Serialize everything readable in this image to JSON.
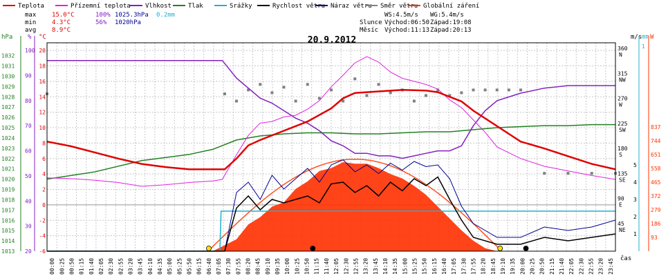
{
  "chart_data": {
    "type": "line",
    "title": "20.9.2012",
    "xlabel": "čas",
    "legend": [
      {
        "name": "Teplota",
        "color": "#e00000"
      },
      {
        "name": "Přízemní teplota",
        "color": "#e020e0"
      },
      {
        "name": "Vlhkost",
        "color": "#8020c0"
      },
      {
        "name": "Tlak",
        "color": "#208020"
      },
      {
        "name": "Srážky",
        "color": "#20b0d0"
      },
      {
        "name": "Rychlost větru",
        "color": "#000000"
      },
      {
        "name": "Náraz větru",
        "color": "#000090"
      },
      {
        "name": "Směr větru",
        "color": "#808080"
      },
      {
        "name": "Globální záření",
        "color": "#ff3000"
      }
    ],
    "stats": {
      "max_label": "max",
      "max_temp": "15.0°C",
      "max_hum": "100%",
      "max_press": "1025.3hPa",
      "max_rain": "0.2mm",
      "min_label": "min",
      "min_temp": "4.3°C",
      "min_hum": "56%",
      "min_press": "1020hPa",
      "avg_label": "avg",
      "avg_temp": "8.9°C",
      "ws": "WS:4.5m/s",
      "wg": "WG:5.4m/s",
      "sun_label": "Slunce",
      "sun_rise": "Východ:06:50",
      "sun_set": "Západ:19:08",
      "moon_label": "Měsíc",
      "moon_rise": "Východ:11:13",
      "moon_set": "Západ:20:13"
    },
    "axes": {
      "left": [
        {
          "unit": "hPa",
          "color": "#208020",
          "ticks": [
            1013,
            1014,
            1015,
            1016,
            1017,
            1018,
            1019,
            1020,
            1021,
            1022,
            1023,
            1024,
            1025,
            1026,
            1027,
            1028,
            1029,
            1030,
            1031,
            1032
          ]
        },
        {
          "unit": "%",
          "color": "#8020c0",
          "ticks": [
            20,
            30,
            40,
            50,
            60,
            70,
            80,
            90,
            100
          ]
        },
        {
          "unit": "°C",
          "color": "#e00000",
          "ticks": [
            -6,
            -4,
            -2,
            0,
            2,
            4,
            6,
            8,
            10,
            12,
            14,
            16,
            18,
            20
          ]
        }
      ],
      "right": [
        {
          "unit": "m/s",
          "color": "#000000",
          "ticks": [
            1,
            2,
            3,
            4,
            5
          ]
        },
        {
          "unit": "mm",
          "color": "#20b0d0",
          "ticks": [
            1
          ]
        },
        {
          "unit": "W",
          "color": "#ff3000",
          "ticks": [
            93,
            186,
            279,
            372,
            465,
            558,
            651,
            744,
            837
          ]
        },
        {
          "unit": "dir",
          "color": "#000000",
          "ticks": [
            "45 NE",
            "90 E",
            "135 SE",
            "180 S",
            "225 SW",
            "270 W",
            "315 NW",
            "360 N"
          ]
        }
      ],
      "temp_range": [
        -6,
        21
      ],
      "time_range": [
        0,
        24
      ]
    },
    "x_ticks": [
      "00:00",
      "00:25",
      "00:50",
      "01:15",
      "01:40",
      "02:05",
      "02:30",
      "02:55",
      "03:20",
      "03:45",
      "04:10",
      "04:35",
      "05:00",
      "05:25",
      "05:50",
      "06:15",
      "06:40",
      "07:05",
      "07:30",
      "07:55",
      "08:20",
      "08:45",
      "09:10",
      "09:35",
      "10:00",
      "10:25",
      "10:50",
      "11:15",
      "11:40",
      "12:05",
      "12:30",
      "12:55",
      "13:20",
      "13:45",
      "14:10",
      "14:35",
      "15:00",
      "15:25",
      "15:50",
      "16:15",
      "16:40",
      "17:05",
      "17:30",
      "17:55",
      "18:20",
      "18:45",
      "19:10",
      "19:35",
      "20:00",
      "20:25",
      "20:50",
      "21:15",
      "21:40",
      "22:05",
      "22:30",
      "22:55",
      "23:20",
      "23:45"
    ],
    "series": [
      {
        "name": "Teplota",
        "unit": "°C",
        "x": [
          0,
          1,
          2,
          3,
          4,
          5,
          6,
          7,
          7.5,
          8,
          8.5,
          9,
          10,
          11,
          12,
          12.5,
          13,
          14,
          15,
          16,
          16.5,
          17,
          17.5,
          18,
          18.5,
          19,
          19.5,
          20,
          21,
          22,
          23,
          24
        ],
        "y": [
          8.2,
          7.6,
          6.8,
          6.0,
          5.3,
          4.9,
          4.6,
          4.6,
          4.6,
          6.0,
          7.7,
          8.4,
          9.6,
          10.8,
          12.5,
          13.8,
          14.5,
          14.7,
          14.9,
          14.8,
          14.6,
          14.0,
          13.4,
          12.2,
          11.2,
          10.2,
          9.2,
          8.2,
          7.3,
          6.3,
          5.3,
          4.6
        ]
      },
      {
        "name": "Přízemní teplota",
        "unit": "°C",
        "x": [
          0,
          1,
          2,
          3,
          4,
          5,
          6,
          7,
          7.4,
          8,
          8.5,
          9,
          9.5,
          10,
          10.5,
          11,
          11.5,
          12,
          12.5,
          13,
          13.5,
          14,
          14.5,
          15,
          15.5,
          16,
          16.5,
          17,
          17.5,
          18,
          18.5,
          19,
          20,
          21,
          22,
          23,
          24
        ],
        "y": [
          3.5,
          3.4,
          3.2,
          2.9,
          2.4,
          2.6,
          2.9,
          3.1,
          3.3,
          6.5,
          9.0,
          10.6,
          10.8,
          11.4,
          11.6,
          12.4,
          13.5,
          15.3,
          16.8,
          18.4,
          19.2,
          18.5,
          17.2,
          16.4,
          16.0,
          15.6,
          15.0,
          13.6,
          12.6,
          11.0,
          9.4,
          7.5,
          6.0,
          5.0,
          4.4,
          3.8,
          3.3
        ]
      },
      {
        "name": "Vlhkost",
        "unit": "%",
        "x": [
          0,
          1,
          2,
          3,
          4,
          5,
          6,
          7,
          7.4,
          8,
          8.5,
          9,
          9.5,
          10,
          10.5,
          11,
          11.5,
          12,
          12.5,
          13,
          13.5,
          14,
          14.5,
          15,
          15.5,
          16,
          16.5,
          17,
          17.5,
          18,
          18.5,
          19,
          20,
          21,
          22,
          23,
          24
        ],
        "y": [
          96,
          96,
          96,
          96,
          96,
          96,
          96,
          96,
          96,
          89,
          85,
          81,
          79,
          76,
          73,
          71,
          68,
          64,
          62,
          59,
          59,
          58,
          58,
          57,
          58,
          59,
          60,
          60,
          62,
          70,
          76,
          80,
          83,
          85,
          86,
          86,
          86
        ]
      },
      {
        "name": "Tlak",
        "unit": "hPa",
        "x": [
          0,
          2,
          4,
          6,
          7,
          8,
          9,
          10,
          11,
          12,
          13,
          14,
          15,
          16,
          17,
          18,
          19,
          20,
          21,
          22,
          23,
          24
        ],
        "y": [
          1020,
          1020.7,
          1021.8,
          1022.4,
          1022.9,
          1023.8,
          1024.2,
          1024.4,
          1024.5,
          1024.5,
          1024.4,
          1024.4,
          1024.5,
          1024.6,
          1024.6,
          1024.8,
          1025.0,
          1025.1,
          1025.2,
          1025.2,
          1025.3,
          1025.3
        ]
      },
      {
        "name": "Srážky",
        "unit": "mm",
        "x": [
          0,
          7.3,
          7.35,
          24
        ],
        "y": [
          0,
          0,
          0.2,
          0.2
        ]
      },
      {
        "name": "Globální záření",
        "unit": "W",
        "x": [
          7.0,
          7.5,
          8,
          8.5,
          9,
          9.5,
          10,
          10.5,
          11,
          11.5,
          12,
          12.5,
          13,
          13.5,
          14,
          14.5,
          15,
          15.5,
          16,
          16.5,
          17,
          17.5,
          18,
          18.5,
          19
        ],
        "y": [
          0,
          40,
          80,
          180,
          230,
          300,
          330,
          420,
          470,
          540,
          560,
          600,
          590,
          590,
          560,
          520,
          490,
          440,
          380,
          300,
          220,
          140,
          70,
          20,
          0
        ]
      },
      {
        "name": "Rychlost větru",
        "unit": "m/s",
        "x": [
          0,
          7.5,
          8,
          8.5,
          9,
          9.5,
          10,
          10.5,
          11,
          11.5,
          12,
          12.5,
          13,
          13.5,
          14,
          14.5,
          15,
          15.5,
          16,
          16.5,
          17,
          17.5,
          18,
          19,
          20,
          21,
          22,
          23,
          24
        ],
        "y": [
          0,
          0,
          2.5,
          3.2,
          2.4,
          3.0,
          2.8,
          3.0,
          3.2,
          2.8,
          3.9,
          4.0,
          3.4,
          3.8,
          3.2,
          4.0,
          3.5,
          4.2,
          3.8,
          4.3,
          3.0,
          1.8,
          0.8,
          0.4,
          0.4,
          0.8,
          0.6,
          0.8,
          1.0
        ]
      },
      {
        "name": "Náraz větru",
        "unit": "m/s",
        "x": [
          0,
          7.5,
          8,
          8.5,
          9,
          9.5,
          10,
          10.5,
          11,
          11.5,
          12,
          12.5,
          13,
          13.5,
          14,
          14.5,
          15,
          15.5,
          16,
          16.5,
          17,
          17.5,
          18,
          19,
          20,
          21,
          22,
          23,
          24
        ],
        "y": [
          0,
          0,
          3.4,
          4.0,
          3.0,
          4.4,
          3.6,
          4.2,
          4.8,
          4.0,
          5.0,
          5.3,
          4.6,
          5.0,
          4.5,
          5.1,
          4.7,
          5.2,
          4.9,
          5.0,
          4.2,
          2.6,
          1.6,
          0.8,
          0.8,
          1.4,
          1.2,
          1.4,
          1.8
        ]
      },
      {
        "name": "Směr větru",
        "unit": "°",
        "x": [
          0,
          7.5,
          8,
          8.5,
          9,
          9.5,
          10,
          10.5,
          11,
          11.5,
          12,
          12.5,
          13,
          13.5,
          14,
          14.5,
          15,
          15.5,
          16,
          16.5,
          17,
          17.5,
          18,
          18.5,
          19,
          19.5,
          20,
          21,
          22,
          23,
          24
        ],
        "y": [
          283,
          283,
          270,
          290,
          300,
          285,
          295,
          270,
          300,
          275,
          290,
          270,
          310,
          280,
          300,
          285,
          290,
          270,
          280,
          290,
          280,
          285,
          290,
          290,
          290,
          290,
          290,
          140,
          140,
          140,
          140
        ]
      }
    ]
  }
}
